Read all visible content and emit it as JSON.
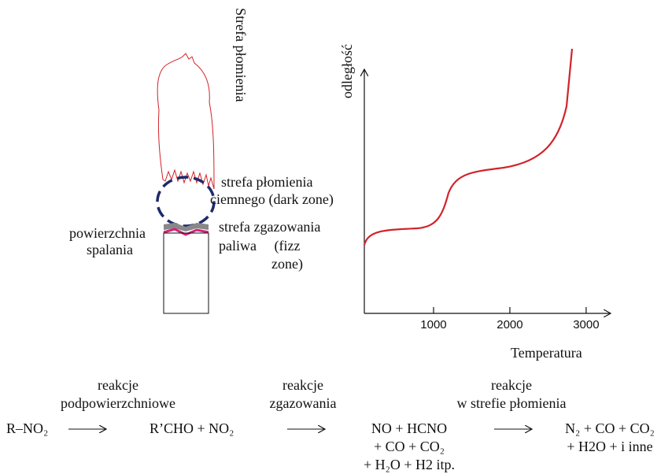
{
  "flame": {
    "zone_label": "Strefa płomienia",
    "dark_zone": [
      "strefa płomienia",
      "ciemnego (dark zone)"
    ],
    "surface": [
      "powierzchnia",
      "spalania"
    ],
    "fizz_zone": [
      "strefa zgazowania",
      "paliwa     (fizz",
      "zone)"
    ]
  },
  "graph": {
    "y_label": "odległość",
    "x_label": "Temperatura",
    "xlim": [
      0,
      3300
    ],
    "xticks": [
      1000,
      2000,
      3000
    ]
  },
  "reactions": {
    "stages": [
      [
        "reakcje",
        "podpowierzchniowe"
      ],
      [
        "reakcje",
        "zgazowania"
      ],
      [
        "reakcje",
        "w strefie płomienia"
      ]
    ],
    "species": [
      [
        "R–NO₂"
      ],
      [
        "R’CHO + NO₂"
      ],
      [
        "NO + HCNO",
        "+ CO + CO₂",
        "+ H₂O + H2 itp."
      ],
      [
        "N₂ + CO + CO₂",
        "+ H2O + i inne"
      ]
    ]
  }
}
